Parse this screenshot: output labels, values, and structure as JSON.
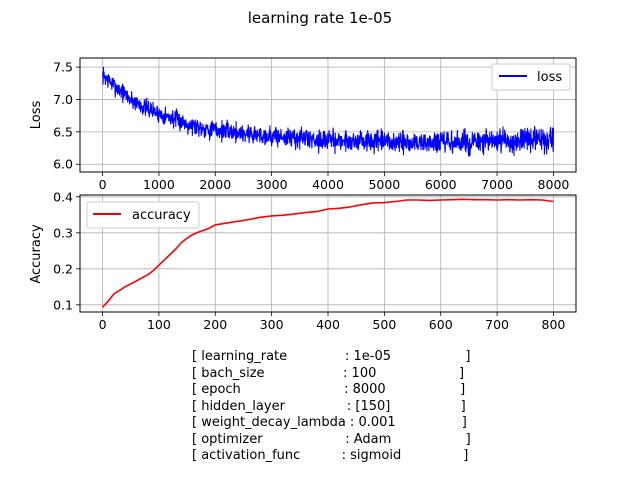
{
  "figure": {
    "title": "learning rate 1e-05"
  },
  "chart_data": [
    {
      "type": "line",
      "ylabel": "Loss",
      "xlabel": "",
      "xlim": [
        -400,
        8400
      ],
      "ylim": [
        5.88,
        7.64
      ],
      "xticks": [
        0,
        1000,
        2000,
        3000,
        4000,
        5000,
        6000,
        7000,
        8000
      ],
      "yticks": [
        6.0,
        6.5,
        7.0,
        7.5
      ],
      "grid": true,
      "legend_position": "upper right",
      "series": [
        {
          "name": "loss",
          "color": "#0000ff",
          "x": [
            0,
            100,
            200,
            300,
            400,
            500,
            600,
            700,
            800,
            900,
            1000,
            1200,
            1400,
            1600,
            1800,
            2000,
            2300,
            2600,
            2900,
            3200,
            3500,
            3800,
            4100,
            4400,
            4700,
            5000,
            5300,
            5600,
            5900,
            6200,
            6500,
            6800,
            7100,
            7400,
            7700,
            8000
          ],
          "y": [
            7.38,
            7.3,
            7.22,
            7.15,
            7.08,
            7.0,
            6.95,
            6.9,
            6.86,
            6.82,
            6.78,
            6.72,
            6.66,
            6.6,
            6.56,
            6.53,
            6.5,
            6.47,
            6.44,
            6.42,
            6.4,
            6.38,
            6.37,
            6.36,
            6.35,
            6.34,
            6.33,
            6.33,
            6.33,
            6.33,
            6.33,
            6.34,
            6.35,
            6.36,
            6.38,
            6.38
          ],
          "noise": [
            0.12,
            0.12,
            0.12,
            0.12,
            0.12,
            0.12,
            0.12,
            0.12,
            0.12,
            0.12,
            0.12,
            0.12,
            0.13,
            0.13,
            0.13,
            0.13,
            0.13,
            0.14,
            0.14,
            0.14,
            0.14,
            0.14,
            0.14,
            0.15,
            0.15,
            0.15,
            0.15,
            0.16,
            0.16,
            0.16,
            0.16,
            0.17,
            0.17,
            0.17,
            0.17,
            0.17
          ]
        }
      ]
    },
    {
      "type": "line",
      "ylabel": "Accuracy",
      "xlabel": "",
      "xlim": [
        -40,
        840
      ],
      "ylim": [
        0.08,
        0.405
      ],
      "xticks": [
        0,
        100,
        200,
        300,
        400,
        500,
        600,
        700,
        800
      ],
      "yticks": [
        0.1,
        0.2,
        0.3,
        0.4
      ],
      "grid": true,
      "legend_position": "upper left",
      "series": [
        {
          "name": "accuracy",
          "color": "#ff0000",
          "x": [
            0,
            10,
            20,
            30,
            40,
            50,
            60,
            70,
            80,
            90,
            100,
            110,
            120,
            130,
            140,
            150,
            160,
            170,
            180,
            190,
            200,
            220,
            240,
            260,
            280,
            300,
            320,
            340,
            360,
            380,
            400,
            420,
            440,
            460,
            480,
            500,
            520,
            540,
            560,
            580,
            600,
            620,
            640,
            660,
            680,
            700,
            720,
            740,
            760,
            780,
            800
          ],
          "y": [
            0.093,
            0.11,
            0.13,
            0.14,
            0.15,
            0.158,
            0.166,
            0.175,
            0.183,
            0.195,
            0.21,
            0.225,
            0.24,
            0.255,
            0.273,
            0.285,
            0.295,
            0.302,
            0.307,
            0.313,
            0.322,
            0.327,
            0.332,
            0.337,
            0.343,
            0.347,
            0.349,
            0.352,
            0.356,
            0.359,
            0.366,
            0.368,
            0.372,
            0.378,
            0.383,
            0.384,
            0.387,
            0.391,
            0.391,
            0.39,
            0.391,
            0.392,
            0.393,
            0.392,
            0.392,
            0.391,
            0.392,
            0.391,
            0.392,
            0.391,
            0.387
          ]
        }
      ]
    }
  ],
  "parameters": [
    "[ learning_rate              : 1e-05                  ]",
    "[ bach_size                   : 100                    ]",
    "[ epoch                         : 8000                  ]",
    "[ hidden_layer               : [150]                 ]",
    "[ weight_decay_lambda : 0.001                ]",
    "[ optimizer                    : Adam                  ]",
    "[ activation_func          : sigmoid               ]"
  ]
}
